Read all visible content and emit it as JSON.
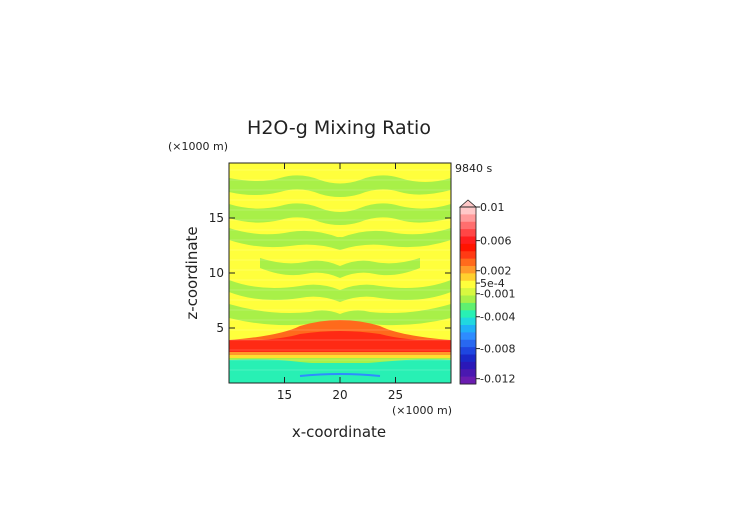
{
  "chart_data": {
    "type": "heatmap",
    "title": "H2O-g Mixing Ratio",
    "xlabel": "x-coordinate",
    "ylabel": "z-coordinate",
    "x_unit_label": "(×1000 m)",
    "y_unit_label": "(×1000 m)",
    "time_label": "9840 s",
    "xlim": [
      10,
      30
    ],
    "ylim": [
      0,
      20
    ],
    "x_ticks": [
      15,
      20,
      25
    ],
    "y_ticks": [
      5,
      10,
      15
    ],
    "colorbar": {
      "labels": [
        "0.01",
        "0.006",
        "0.002",
        "5e-4",
        "-0.001",
        "-0.004",
        "-0.008",
        "-0.012"
      ],
      "range": [
        -0.012,
        0.012
      ]
    },
    "field_description_levels": [
      {
        "z_range": [
          0.5,
          1.7
        ],
        "value": -0.002
      },
      {
        "z_range": [
          1.7,
          2.8
        ],
        "value": -0.001
      },
      {
        "z_range": [
          2.8,
          4.5
        ],
        "value": 0.006
      },
      {
        "z_range": [
          4.5,
          20
        ],
        "value": 0.0005
      }
    ]
  },
  "colors": {
    "yellow": "#ffff3c",
    "green": "#a8f048",
    "red": "#ff2a14",
    "orange": "#ff6a1c",
    "cyan": "#28f0b4",
    "blue": "#2e8cff"
  }
}
